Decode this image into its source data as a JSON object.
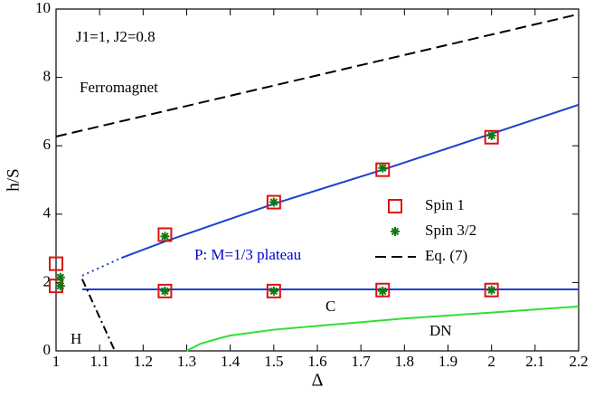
{
  "chart_data": {
    "type": "line",
    "x_label": "Δ",
    "y_label": "h/S",
    "xlim": [
      1,
      2.2
    ],
    "ylim": [
      0,
      10
    ],
    "xticks": [
      1,
      1.1,
      1.2,
      1.3,
      1.4,
      1.5,
      1.6,
      1.7,
      1.8,
      1.9,
      2,
      2.1,
      2.2
    ],
    "yticks": [
      0,
      2,
      4,
      6,
      8,
      10
    ],
    "annotations": [
      {
        "text": "J1=1, J2=0.8",
        "color": "#000000"
      },
      {
        "text": "Ferromagnet",
        "color": "#000000"
      },
      {
        "text": "P: M=1/3 plateau",
        "color": "#0000cc"
      },
      {
        "text": "C",
        "color": "#000000"
      },
      {
        "text": "DN",
        "color": "#000000"
      },
      {
        "text": "H",
        "color": "#000000"
      }
    ],
    "series": [
      {
        "kind": "line",
        "dash": "solid",
        "color": "#1f3fcf",
        "x": [
          1.15,
          1.25,
          1.5,
          1.75,
          2,
          2.2
        ],
        "values": [
          2.72,
          3.2,
          4.3,
          5.3,
          6.35,
          7.2
        ]
      },
      {
        "kind": "line",
        "dash": "dotted",
        "color": "#1f3fcf",
        "x": [
          1.06,
          1.15
        ],
        "values": [
          2.2,
          2.72
        ]
      },
      {
        "kind": "line",
        "dash": "solid",
        "color": "#1f3fcf",
        "x": [
          1.06,
          2.2
        ],
        "values": [
          1.8,
          1.8
        ]
      },
      {
        "kind": "line",
        "dash": "solid",
        "color": "#33dd33",
        "x": [
          1.3,
          1.33,
          1.37,
          1.4,
          1.5,
          1.6,
          1.8,
          2,
          2.2
        ],
        "values": [
          0,
          0.2,
          0.35,
          0.45,
          0.62,
          0.73,
          0.95,
          1.12,
          1.3
        ]
      },
      {
        "kind": "line",
        "dash": "dashdot",
        "color": "#000000",
        "x": [
          1.06,
          1.135
        ],
        "values": [
          2.1,
          0
        ]
      },
      {
        "name": "Spin 1",
        "kind": "square",
        "color": "#dd1111",
        "x": [
          1,
          1,
          1.25,
          1.25,
          1.5,
          1.5,
          1.75,
          1.75,
          2,
          2
        ],
        "values": [
          2.55,
          1.9,
          3.4,
          1.75,
          4.35,
          1.75,
          5.3,
          1.78,
          6.25,
          1.78
        ]
      },
      {
        "name": "Spin 3/2",
        "kind": "star",
        "color": "#117711",
        "x": [
          1.01,
          1.01,
          1.25,
          1.25,
          1.5,
          1.5,
          1.75,
          1.75,
          2,
          2
        ],
        "values": [
          2.15,
          1.9,
          3.35,
          1.75,
          4.35,
          1.75,
          5.35,
          1.75,
          6.3,
          1.78
        ]
      },
      {
        "name": "Eq. (7)",
        "kind": "line",
        "dash": "dashed",
        "color": "#000000",
        "x": [
          1,
          2.2
        ],
        "values": [
          6.27,
          9.85
        ]
      }
    ]
  }
}
